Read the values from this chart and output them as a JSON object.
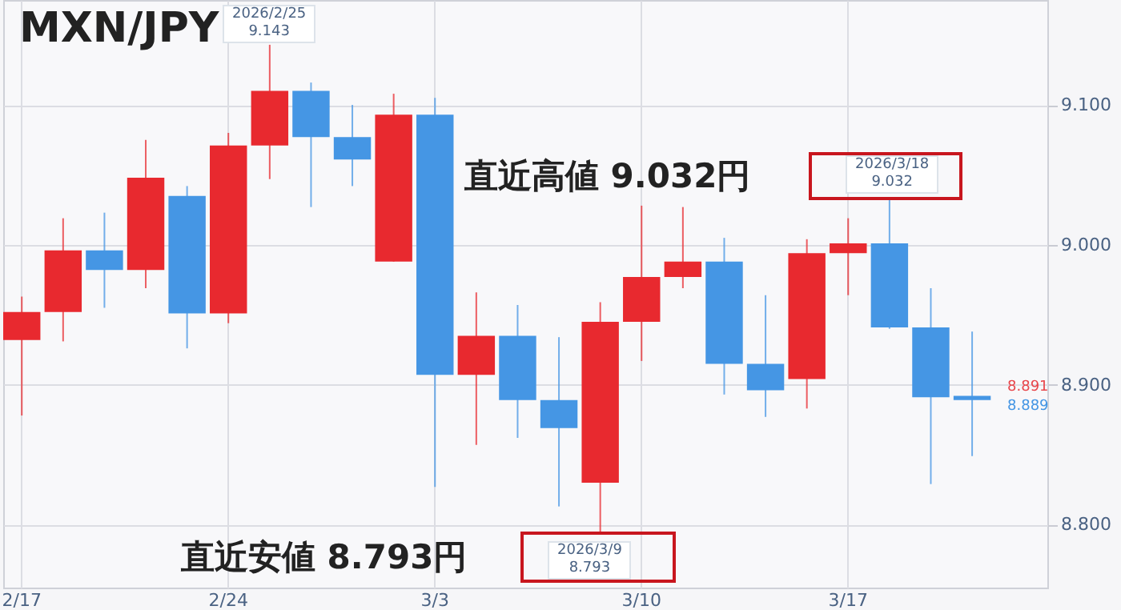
{
  "chart_data": {
    "type": "candlestick",
    "title": "MXN/JPY",
    "categories": [
      "2/17",
      null,
      null,
      null,
      null,
      "2/24",
      null,
      null,
      null,
      null,
      "3/3",
      null,
      null,
      null,
      null,
      "3/10",
      null,
      null,
      null,
      null,
      "3/17",
      null,
      null,
      null
    ],
    "ohlc": [
      [
        8.932,
        8.963,
        8.878,
        8.952
      ],
      [
        8.952,
        9.019,
        8.931,
        8.996
      ],
      [
        8.996,
        9.023,
        8.955,
        8.982
      ],
      [
        8.982,
        9.075,
        8.969,
        9.048
      ],
      [
        9.035,
        9.042,
        8.926,
        8.951
      ],
      [
        8.951,
        9.08,
        8.944,
        9.071
      ],
      [
        9.071,
        9.143,
        9.047,
        9.11
      ],
      [
        9.11,
        9.116,
        9.027,
        9.077
      ],
      [
        9.077,
        9.1,
        9.042,
        9.061
      ],
      [
        8.988,
        9.108,
        8.988,
        9.093
      ],
      [
        9.093,
        9.105,
        8.827,
        8.907
      ],
      [
        8.907,
        8.966,
        8.857,
        8.935
      ],
      [
        8.935,
        8.957,
        8.862,
        8.889
      ],
      [
        8.889,
        8.934,
        8.813,
        8.869
      ],
      [
        8.83,
        8.959,
        8.793,
        8.945
      ],
      [
        8.945,
        9.028,
        8.917,
        8.977
      ],
      [
        8.977,
        9.027,
        8.969,
        8.988
      ],
      [
        8.988,
        9.005,
        8.893,
        8.915
      ],
      [
        8.915,
        8.964,
        8.877,
        8.896
      ],
      [
        8.904,
        9.004,
        8.883,
        8.994
      ],
      [
        8.994,
        9.019,
        8.964,
        9.001
      ],
      [
        9.001,
        9.032,
        8.94,
        8.941
      ],
      [
        8.941,
        8.969,
        8.829,
        8.891
      ],
      [
        8.892,
        8.938,
        8.849,
        8.889
      ]
    ],
    "colors": [
      "#e8292f",
      "#e8292f",
      "#4596e4",
      "#e8292f",
      "#4596e4",
      "#e8292f",
      "#e8292f",
      "#4596e4",
      "#4596e4",
      "#e8292f",
      "#4596e4",
      "#e8292f",
      "#4596e4",
      "#4596e4",
      "#e8292f",
      "#e8292f",
      "#e8292f",
      "#4596e4",
      "#4596e4",
      "#e8292f",
      "#e8292f",
      "#4596e4",
      "#4596e4",
      "#4596e4"
    ],
    "ylim": [
      8.755,
      9.175
    ],
    "yticks": [
      {
        "value": 8.8,
        "label": "8.800"
      },
      {
        "value": 8.9,
        "label": "8.900"
      },
      {
        "value": 9.0,
        "label": "9.000"
      },
      {
        "value": 9.1,
        "label": "9.100"
      }
    ],
    "grid": true,
    "annotations": [
      "直近高値 9.032円",
      "2026/3/18\n9.032",
      "直近安値 8.793円",
      "2026/3/9\n8.793",
      "2026/2/25\n9.143",
      "8.891",
      "8.889"
    ]
  }
}
